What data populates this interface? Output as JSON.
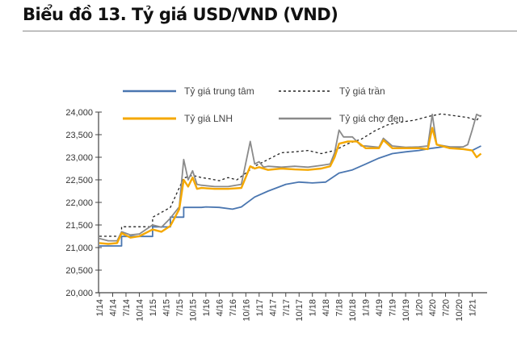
{
  "title": "Biểu đồ 13. Tỷ giá USD/VND (VND)",
  "chart_data": {
    "type": "line",
    "title": "Biểu đồ 13. Tỷ giá USD/VND (VND)",
    "xlabel": "",
    "ylabel": "",
    "ylim": [
      20000,
      24000
    ],
    "xlim": [
      "2014-01",
      "2021-04"
    ],
    "yticks": [
      "20,000",
      "20,500",
      "21,000",
      "21,500",
      "22,000",
      "22,500",
      "23,000",
      "23,500",
      "24,000"
    ],
    "xticks": [
      "1/14",
      "4/14",
      "7/14",
      "10/14",
      "1/15",
      "4/15",
      "7/15",
      "10/15",
      "1/16",
      "4/16",
      "7/16",
      "10/16",
      "1/17",
      "4/17",
      "7/17",
      "10/17",
      "1/18",
      "4/18",
      "7/18",
      "10/18",
      "1/19",
      "4/19",
      "7/19",
      "10/19",
      "1/20",
      "4/20",
      "7/20",
      "10/20",
      "1/21"
    ],
    "grid": false,
    "legend_placement": "top",
    "series": [
      {
        "name": "Tỷ giá trung tâm",
        "color": "#4a76b0",
        "style": "solid",
        "x": [
          "2014-01",
          "2014-06",
          "2014-06",
          "2015-01",
          "2015-01",
          "2015-05",
          "2015-05",
          "2015-08",
          "2015-08",
          "2015-12",
          "2016-01",
          "2016-04",
          "2016-07",
          "2016-09",
          "2016-12",
          "2017-03",
          "2017-07",
          "2017-10",
          "2018-01",
          "2018-04",
          "2018-07",
          "2018-10",
          "2019-01",
          "2019-04",
          "2019-07",
          "2019-10",
          "2020-01",
          "2020-04",
          "2020-07",
          "2020-10",
          "2021-01",
          "2021-03"
        ],
        "y": [
          21036,
          21036,
          21246,
          21246,
          21458,
          21458,
          21673,
          21673,
          21890,
          21890,
          21900,
          21890,
          21850,
          21900,
          22120,
          22250,
          22400,
          22450,
          22430,
          22450,
          22650,
          22720,
          22850,
          22980,
          23080,
          23120,
          23150,
          23200,
          23240,
          23200,
          23150,
          23250
        ]
      },
      {
        "name": "Tỷ giá trần",
        "color": "#222222",
        "style": "dashed",
        "x": [
          "2014-01",
          "2014-06",
          "2014-06",
          "2015-01",
          "2015-01",
          "2015-05",
          "2015-08",
          "2015-10",
          "2015-12",
          "2016-02",
          "2016-04",
          "2016-06",
          "2016-08",
          "2016-10",
          "2016-12",
          "2017-03",
          "2017-06",
          "2017-09",
          "2017-12",
          "2018-03",
          "2018-06",
          "2018-09",
          "2018-12",
          "2019-03",
          "2019-06",
          "2019-09",
          "2019-12",
          "2020-03",
          "2020-06",
          "2020-09",
          "2020-12",
          "2021-02",
          "2021-03"
        ],
        "y": [
          21250,
          21250,
          21460,
          21460,
          21670,
          21890,
          22540,
          22600,
          22550,
          22520,
          22480,
          22550,
          22500,
          22650,
          22800,
          22950,
          23100,
          23120,
          23150,
          23080,
          23150,
          23300,
          23400,
          23580,
          23720,
          23780,
          23820,
          23900,
          23960,
          23920,
          23880,
          23820,
          23930
        ]
      },
      {
        "name": "Tỷ giá LNH",
        "color": "#f5a800",
        "style": "solid",
        "x": [
          "2014-01",
          "2014-03",
          "2014-05",
          "2014-06",
          "2014-08",
          "2014-10",
          "2015-01",
          "2015-03",
          "2015-05",
          "2015-07",
          "2015-08",
          "2015-09",
          "2015-10",
          "2015-11",
          "2015-12",
          "2016-03",
          "2016-06",
          "2016-09",
          "2016-11",
          "2016-12",
          "2017-01",
          "2017-03",
          "2017-06",
          "2017-09",
          "2017-12",
          "2018-03",
          "2018-05",
          "2018-06",
          "2018-07",
          "2018-09",
          "2018-11",
          "2019-01",
          "2019-04",
          "2019-05",
          "2019-07",
          "2019-10",
          "2020-01",
          "2020-03",
          "2020-04",
          "2020-05",
          "2020-08",
          "2020-11",
          "2021-01",
          "2021-02",
          "2021-03"
        ],
        "y": [
          21100,
          21080,
          21100,
          21320,
          21220,
          21250,
          21400,
          21350,
          21480,
          21850,
          22500,
          22350,
          22550,
          22300,
          22320,
          22300,
          22300,
          22320,
          22800,
          22750,
          22780,
          22720,
          22750,
          22730,
          22720,
          22750,
          22800,
          23000,
          23300,
          23350,
          23350,
          23200,
          23200,
          23380,
          23200,
          23200,
          23200,
          23180,
          23650,
          23280,
          23200,
          23180,
          23150,
          23000,
          23080
        ]
      },
      {
        "name": "Tỷ giá chợ đen",
        "color": "#8a8a8a",
        "style": "solid",
        "x": [
          "2014-01",
          "2014-03",
          "2014-05",
          "2014-06",
          "2014-08",
          "2014-10",
          "2015-01",
          "2015-03",
          "2015-05",
          "2015-07",
          "2015-08",
          "2015-09",
          "2015-10",
          "2015-11",
          "2015-12",
          "2016-03",
          "2016-06",
          "2016-09",
          "2016-11",
          "2016-12",
          "2017-01",
          "2017-02",
          "2017-03",
          "2017-06",
          "2017-09",
          "2017-12",
          "2018-03",
          "2018-05",
          "2018-06",
          "2018-07",
          "2018-08",
          "2018-10",
          "2018-12",
          "2019-01",
          "2019-04",
          "2019-05",
          "2019-07",
          "2019-10",
          "2020-01",
          "2020-03",
          "2020-04",
          "2020-05",
          "2020-08",
          "2020-11",
          "2020-12",
          "2021-01",
          "2021-02",
          "2021-03"
        ],
        "y": [
          21200,
          21150,
          21150,
          21350,
          21280,
          21300,
          21500,
          21450,
          21650,
          21900,
          22950,
          22500,
          22700,
          22400,
          22380,
          22350,
          22350,
          22400,
          23350,
          22850,
          22900,
          22780,
          22800,
          22780,
          22800,
          22780,
          22820,
          22850,
          23100,
          23600,
          23450,
          23450,
          23250,
          23250,
          23220,
          23420,
          23250,
          23220,
          23230,
          23250,
          23950,
          23280,
          23230,
          23230,
          23280,
          23600,
          23950,
          23900
        ]
      }
    ]
  }
}
